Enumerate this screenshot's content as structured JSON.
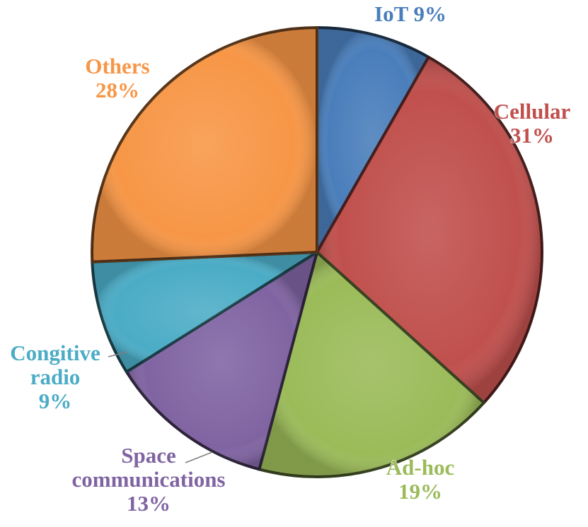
{
  "chart_data": {
    "type": "pie",
    "title": "",
    "slices": [
      {
        "label": "IoT",
        "value": 9,
        "value_label": "9%",
        "color": "#4a7ebb"
      },
      {
        "label": "Cellular",
        "value": 31,
        "value_label": "31%",
        "color": "#c0504d"
      },
      {
        "label": "Ad-hoc",
        "value": 19,
        "value_label": "19%",
        "color": "#9bbb59"
      },
      {
        "label": "Space communications",
        "value": 13,
        "value_label": "13%",
        "color": "#8064a2"
      },
      {
        "label": "Congitive radio",
        "value": 9,
        "value_label": "9%",
        "color": "#4bacc6"
      },
      {
        "label": "Others",
        "value": 28,
        "value_label": "28%",
        "color": "#f79646"
      }
    ],
    "labels_display": [
      {
        "lines": [
          "IoT 9%"
        ]
      },
      {
        "lines": [
          "Cellular",
          "31%"
        ]
      },
      {
        "lines": [
          "Ad-hoc",
          "19%"
        ]
      },
      {
        "lines": [
          "Space",
          "communications",
          "13%"
        ]
      },
      {
        "lines": [
          "Congitive",
          "radio",
          "9%"
        ]
      },
      {
        "lines": [
          "Others",
          "28%"
        ]
      }
    ],
    "legend": "none"
  }
}
